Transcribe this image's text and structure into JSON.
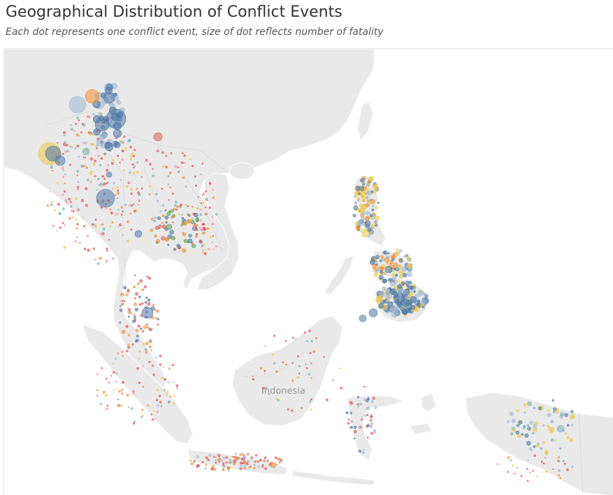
{
  "header": {
    "title": "Geographical Distribution of Conflict Events",
    "subtitle": "Each dot represents one conflict event, size of dot reflects number of fatality"
  },
  "map": {
    "labels": {
      "indonesia": "Indonesia"
    },
    "colors": {
      "blue": "#4e79a7",
      "light_blue": "#a0b9d3",
      "orange": "#f28e2b",
      "red": "#e15759",
      "teal": "#76b7b2",
      "green": "#59a14f",
      "yellow": "#edc948",
      "pink": "#ff9da7"
    }
  }
}
